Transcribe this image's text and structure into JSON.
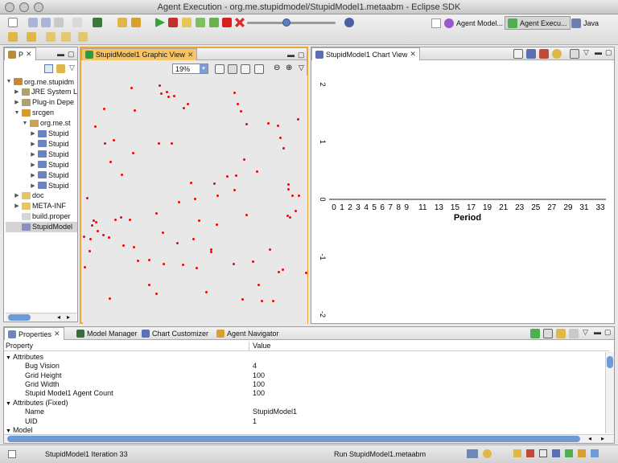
{
  "window": {
    "title": "Agent Execution - org.me.stupidmodel/StupidModel1.metaabm - Eclipse SDK"
  },
  "perspectives": [
    {
      "label": "Agent Model...",
      "active": false
    },
    {
      "label": "Agent Execu...",
      "active": true
    },
    {
      "label": "Java",
      "active": false
    }
  ],
  "explorer": {
    "tab_label": "P",
    "items": [
      {
        "label": "org.me.stupidm",
        "indent": 0,
        "expanded": true,
        "icon": "project-icon"
      },
      {
        "label": "JRE System L",
        "indent": 1,
        "expanded": false,
        "icon": "library-icon"
      },
      {
        "label": "Plug-in Depe",
        "indent": 1,
        "expanded": false,
        "icon": "library-icon"
      },
      {
        "label": "srcgen",
        "indent": 1,
        "expanded": true,
        "icon": "source-folder-icon"
      },
      {
        "label": "org.me.st",
        "indent": 2,
        "expanded": true,
        "icon": "package-icon"
      },
      {
        "label": "Stupid",
        "indent": 3,
        "expanded": false,
        "icon": "java-file-icon"
      },
      {
        "label": "Stupid",
        "indent": 3,
        "expanded": false,
        "icon": "java-file-icon"
      },
      {
        "label": "Stupid",
        "indent": 3,
        "expanded": false,
        "icon": "java-file-icon"
      },
      {
        "label": "Stupid",
        "indent": 3,
        "expanded": false,
        "icon": "java-file-icon"
      },
      {
        "label": "Stupid",
        "indent": 3,
        "expanded": false,
        "icon": "java-file-icon"
      },
      {
        "label": "Stupid",
        "indent": 3,
        "expanded": false,
        "icon": "java-file-icon"
      },
      {
        "label": "doc",
        "indent": 1,
        "expanded": false,
        "icon": "folder-icon"
      },
      {
        "label": "META-INF",
        "indent": 1,
        "expanded": false,
        "icon": "folder-icon"
      },
      {
        "label": "build.proper",
        "indent": 1,
        "expanded": null,
        "icon": "file-icon"
      },
      {
        "label": "StupidModel",
        "indent": 1,
        "expanded": null,
        "icon": "model-file-icon",
        "selected": true
      }
    ]
  },
  "graphic_view": {
    "tab_label": "StupidModel1 Graphic View",
    "zoom": "19%",
    "bug_color": "#ff0000",
    "bugs": [
      [
        162,
        107
      ],
      [
        197,
        104
      ],
      [
        206,
        112
      ],
      [
        199,
        114
      ],
      [
        208,
        118
      ],
      [
        215,
        117
      ],
      [
        128,
        133
      ],
      [
        166,
        135
      ],
      [
        232,
        127
      ],
      [
        227,
        132
      ],
      [
        290,
        113
      ],
      [
        294,
        127
      ],
      [
        298,
        136
      ],
      [
        305,
        152
      ],
      [
        369,
        146
      ],
      [
        344,
        154
      ],
      [
        332,
        151
      ],
      [
        117,
        155
      ],
      [
        140,
        172
      ],
      [
        129,
        176
      ],
      [
        347,
        169
      ],
      [
        164,
        188
      ],
      [
        196,
        176
      ],
      [
        212,
        176
      ],
      [
        351,
        182
      ],
      [
        136,
        199
      ],
      [
        302,
        196
      ],
      [
        318,
        211
      ],
      [
        150,
        215
      ],
      [
        281,
        217
      ],
      [
        292,
        216
      ],
      [
        236,
        225
      ],
      [
        265,
        226
      ],
      [
        357,
        227
      ],
      [
        357,
        233
      ],
      [
        290,
        234
      ],
      [
        107,
        244
      ],
      [
        221,
        249
      ],
      [
        241,
        245
      ],
      [
        269,
        241
      ],
      [
        362,
        241
      ],
      [
        370,
        241
      ],
      [
        193,
        263
      ],
      [
        305,
        265
      ],
      [
        366,
        260
      ],
      [
        356,
        266
      ],
      [
        359,
        268
      ],
      [
        115,
        272
      ],
      [
        118,
        274
      ],
      [
        142,
        271
      ],
      [
        149,
        268
      ],
      [
        160,
        271
      ],
      [
        113,
        278
      ],
      [
        120,
        285
      ],
      [
        246,
        272
      ],
      [
        268,
        277
      ],
      [
        103,
        292
      ],
      [
        111,
        295
      ],
      [
        127,
        290
      ],
      [
        134,
        293
      ],
      [
        201,
        287
      ],
      [
        239,
        295
      ],
      [
        219,
        300
      ],
      [
        152,
        303
      ],
      [
        165,
        305
      ],
      [
        110,
        310
      ],
      [
        261,
        308
      ],
      [
        261,
        311
      ],
      [
        334,
        308
      ],
      [
        170,
        322
      ],
      [
        184,
        321
      ],
      [
        104,
        330
      ],
      [
        202,
        326
      ],
      [
        226,
        327
      ],
      [
        289,
        326
      ],
      [
        313,
        323
      ],
      [
        350,
        333
      ],
      [
        243,
        331
      ],
      [
        379,
        337
      ],
      [
        345,
        336
      ],
      [
        184,
        352
      ],
      [
        193,
        363
      ],
      [
        255,
        361
      ],
      [
        320,
        352
      ],
      [
        135,
        369
      ],
      [
        300,
        370
      ],
      [
        324,
        372
      ],
      [
        338,
        372
      ]
    ]
  },
  "chart_view": {
    "tab_label": "StupidModel1 Chart View",
    "chart_data": {
      "type": "line",
      "title": "",
      "xlabel": "Period",
      "ylabel": "",
      "ylim": [
        -2,
        2
      ],
      "xlim": [
        0,
        33
      ],
      "yticks": [
        "2",
        "1",
        "0",
        "-1",
        "-2"
      ],
      "xticks": [
        {
          "v": 0,
          "label": "0"
        },
        {
          "v": 1,
          "label": "1"
        },
        {
          "v": 2,
          "label": "2"
        },
        {
          "v": 3,
          "label": "3"
        },
        {
          "v": 4,
          "label": "4"
        },
        {
          "v": 5,
          "label": "5"
        },
        {
          "v": 6,
          "label": "6"
        },
        {
          "v": 7,
          "label": "7"
        },
        {
          "v": 8,
          "label": "8"
        },
        {
          "v": 9,
          "label": "9"
        },
        {
          "v": 11,
          "label": "11"
        },
        {
          "v": 13,
          "label": "13"
        },
        {
          "v": 15,
          "label": "15"
        },
        {
          "v": 17,
          "label": "17"
        },
        {
          "v": 19,
          "label": "19"
        },
        {
          "v": 21,
          "label": "21"
        },
        {
          "v": 23,
          "label": "23"
        },
        {
          "v": 25,
          "label": "25"
        },
        {
          "v": 27,
          "label": "27"
        },
        {
          "v": 29,
          "label": "29"
        },
        {
          "v": 31,
          "label": "31"
        },
        {
          "v": 33,
          "label": "33"
        }
      ],
      "series": []
    }
  },
  "bottom_tabs": [
    {
      "label": "Properties",
      "active": true,
      "icon": "properties-icon"
    },
    {
      "label": "Model Manager",
      "active": false,
      "icon": "model-manager-icon"
    },
    {
      "label": "Chart Customizer",
      "active": false,
      "icon": "chart-customizer-icon"
    },
    {
      "label": "Agent Navigator",
      "active": false,
      "icon": "agent-navigator-icon"
    }
  ],
  "properties": {
    "header": {
      "property": "Property",
      "value": "Value"
    },
    "rows": [
      {
        "name": "Attributes",
        "value": "",
        "group": true,
        "indent": 0
      },
      {
        "name": "Bug Vision",
        "value": "4",
        "group": false,
        "indent": 1
      },
      {
        "name": "Grid Height",
        "value": "100",
        "group": false,
        "indent": 1
      },
      {
        "name": "Grid Width",
        "value": "100",
        "group": false,
        "indent": 1
      },
      {
        "name": "Stupid Model1 Agent Count",
        "value": "100",
        "group": false,
        "indent": 1
      },
      {
        "name": "Attributes (Fixed)",
        "value": "",
        "group": true,
        "indent": 0
      },
      {
        "name": "Name",
        "value": "StupidModel1",
        "group": false,
        "indent": 1
      },
      {
        "name": "UID",
        "value": "1",
        "group": false,
        "indent": 1
      },
      {
        "name": "Model",
        "value": "",
        "group": true,
        "indent": 0
      }
    ]
  },
  "status": {
    "left": "StupidModel1 Iteration 33",
    "right": "Run StupidModel1.metaabm"
  }
}
